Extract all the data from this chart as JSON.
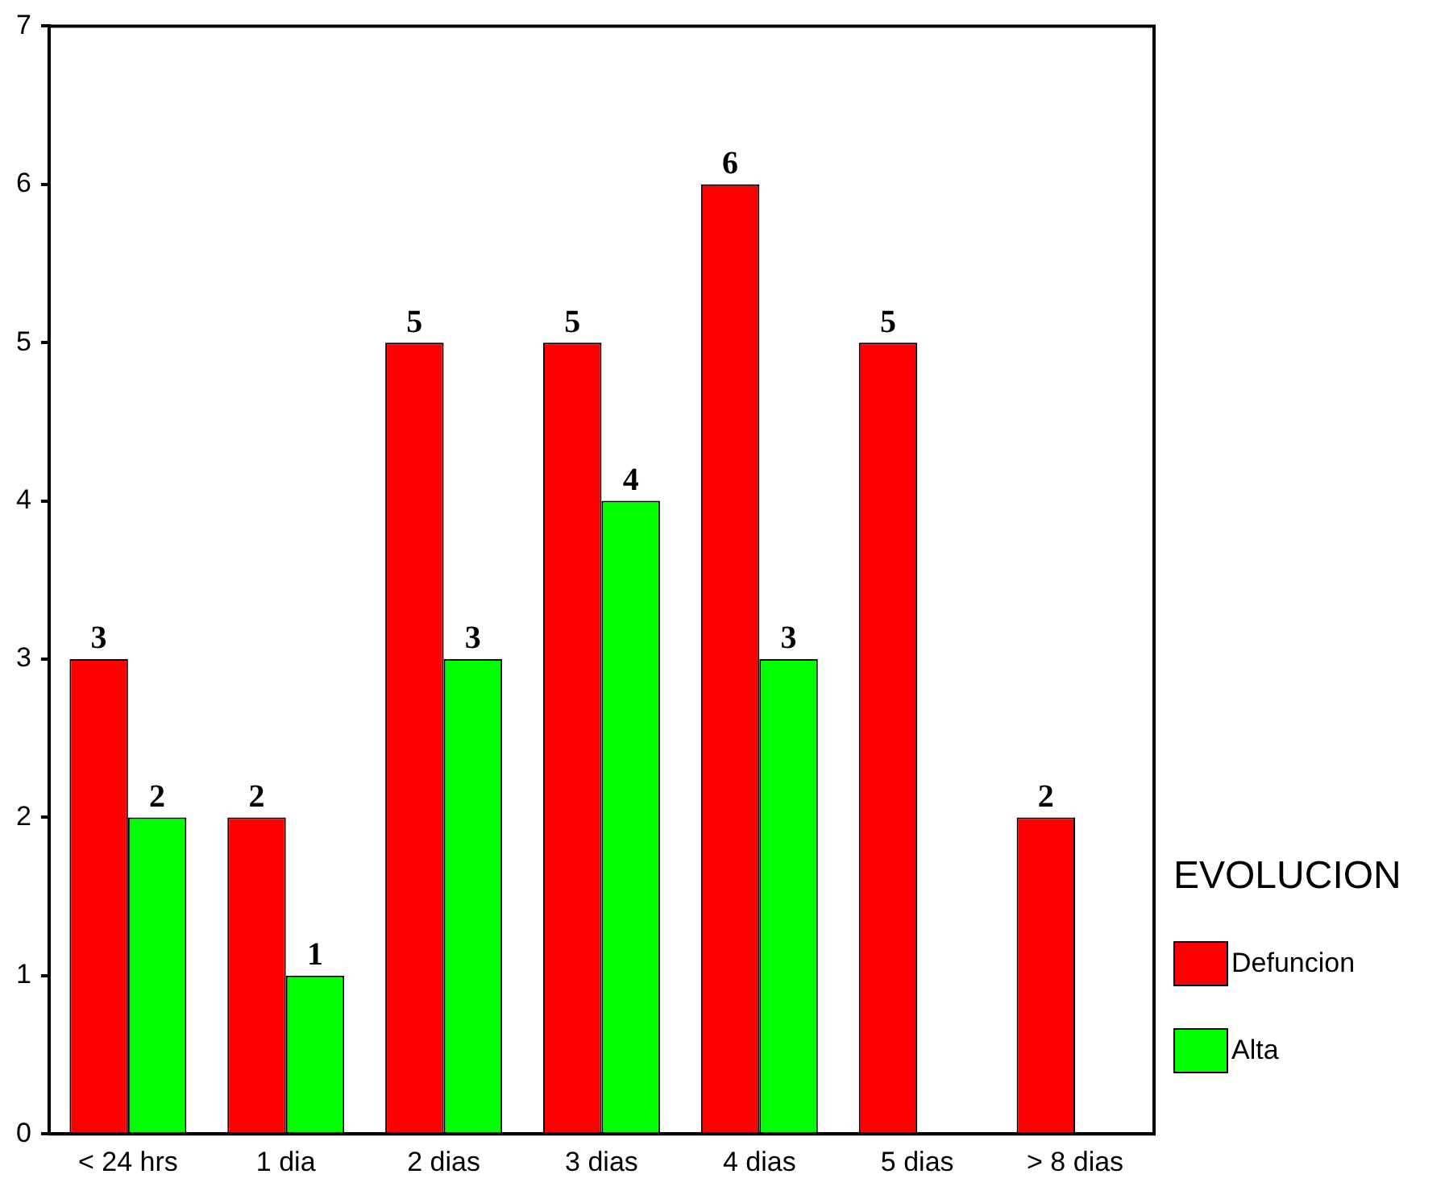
{
  "chart_data": {
    "type": "bar",
    "categories": [
      "< 24 hrs",
      "1 dia",
      "2 dias",
      "3 dias",
      "4 dias",
      "5 dias",
      "> 8 dias"
    ],
    "series": [
      {
        "name": "Defuncion",
        "color": "#ff0000",
        "values": [
          3,
          2,
          5,
          5,
          6,
          5,
          2
        ]
      },
      {
        "name": "Alta",
        "color": "#00ff00",
        "values": [
          2,
          1,
          3,
          4,
          3,
          null,
          null
        ]
      }
    ],
    "legend_title": "EVOLUCION",
    "legend": "right",
    "ylim": [
      0,
      7
    ],
    "yticks": [
      0,
      1,
      2,
      3,
      4,
      5,
      6,
      7
    ],
    "data_labels": true,
    "grid": false
  }
}
